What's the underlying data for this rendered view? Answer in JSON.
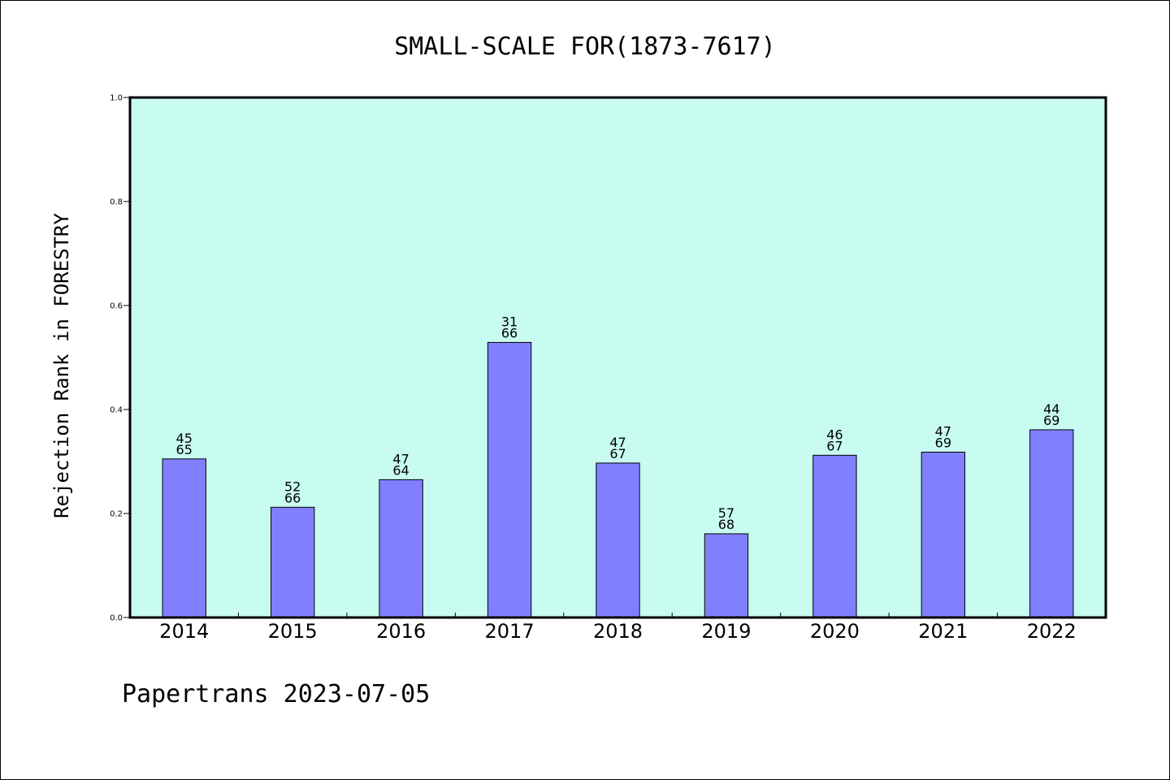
{
  "chart_data": {
    "type": "bar",
    "title": "SMALL-SCALE FOR(1873-7617)",
    "xlabel": "",
    "ylabel": "Rejection Rank in FORESTRY",
    "ylim": [
      0,
      1.0
    ],
    "yticks": [
      "0.0",
      "0.2",
      "0.4",
      "0.6",
      "0.8",
      "1.0"
    ],
    "categories": [
      "2014",
      "2015",
      "2016",
      "2017",
      "2018",
      "2019",
      "2020",
      "2021",
      "2022"
    ],
    "values": [
      0.305,
      0.212,
      0.265,
      0.529,
      0.297,
      0.161,
      0.312,
      0.318,
      0.361
    ],
    "labels_top": [
      "45",
      "52",
      "47",
      "31",
      "47",
      "57",
      "46",
      "47",
      "44"
    ],
    "labels_bottom": [
      "65",
      "66",
      "64",
      "66",
      "67",
      "68",
      "67",
      "69",
      "69"
    ],
    "grid": false,
    "colors": {
      "bar_fill": "#8080ff",
      "plot_background": "#c8fcf0",
      "frame": "#000000"
    }
  },
  "footer": "Papertrans 2023-07-05"
}
